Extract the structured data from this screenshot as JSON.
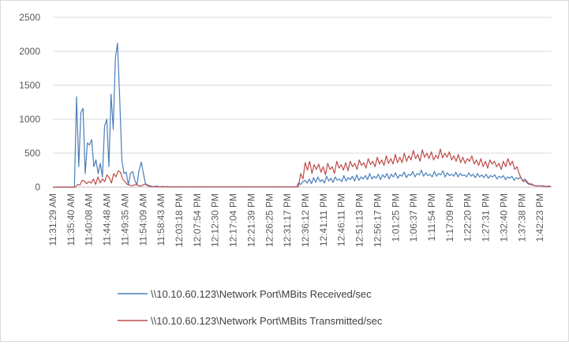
{
  "chart_data": {
    "type": "line",
    "title": "",
    "xlabel": "",
    "ylabel": "",
    "ylim": [
      0,
      2500
    ],
    "y_ticks": [
      0,
      500,
      1000,
      1500,
      2000,
      2500
    ],
    "grid": "horizontal",
    "legend_position": "bottom",
    "x_labels": [
      "11:31:29 AM",
      "11:35:40 AM",
      "11:40:08 AM",
      "11:44:48 AM",
      "11:49:35 AM",
      "11:54:09 AM",
      "11:58:43 AM",
      "12:03:18 PM",
      "12:07:54 PM",
      "12:12:30 PM",
      "12:17:04 PM",
      "12:21:39 PM",
      "12:26:25 PM",
      "12:31:17 PM",
      "12:36:12 PM",
      "12:41:11 PM",
      "12:46:11 PM",
      "12:51:13 PM",
      "12:56:17 PM",
      "1:01:25 PM",
      "1:06:37 PM",
      "1:11:54 PM",
      "1:17:09 PM",
      "1:22:20 PM",
      "1:27:31 PM",
      "1:32:40 PM",
      "1:37:38 PM",
      "1:42:23 PM"
    ],
    "series": [
      {
        "name": "\\\\10.10.60.123\\Network Port\\MBits Received/sec",
        "color": "#4a7ebb",
        "values": [
          0,
          0,
          0,
          0,
          0,
          0,
          0,
          0,
          0,
          0,
          0,
          1330,
          300,
          1100,
          1160,
          200,
          650,
          620,
          700,
          300,
          400,
          200,
          350,
          150,
          900,
          1000,
          300,
          1370,
          850,
          1900,
          2120,
          1300,
          400,
          200,
          220,
          30,
          200,
          230,
          100,
          30,
          250,
          370,
          200,
          50,
          30,
          20,
          10,
          5,
          15,
          8,
          5,
          10,
          5,
          8,
          5,
          3,
          6,
          4,
          5,
          3,
          4,
          5,
          3,
          4,
          4,
          3,
          4,
          5,
          3,
          4,
          5,
          3,
          3,
          4,
          3,
          4,
          5,
          3,
          4,
          3,
          4,
          3,
          4,
          3,
          4,
          3,
          4,
          5,
          3,
          4,
          5,
          4,
          3,
          4,
          5,
          3,
          4,
          3,
          4,
          3,
          4,
          3,
          4,
          3,
          5,
          4,
          3,
          4,
          3,
          5,
          4,
          3,
          4,
          3,
          60,
          40,
          80,
          100,
          60,
          120,
          50,
          140,
          70,
          150,
          80,
          110,
          60,
          160,
          90,
          130,
          70,
          150,
          100,
          120,
          80,
          170,
          90,
          140,
          110,
          160,
          90,
          180,
          100,
          150,
          120,
          170,
          110,
          200,
          120,
          160,
          130,
          190,
          110,
          180,
          140,
          200,
          120,
          190,
          150,
          210,
          130,
          180,
          160,
          220,
          140,
          190,
          170,
          230,
          150,
          200,
          180,
          250,
          160,
          210,
          170,
          190,
          150,
          230,
          160,
          200,
          180,
          240,
          150,
          210,
          170,
          190,
          160,
          220,
          150,
          200,
          170,
          180,
          150,
          210,
          160,
          190,
          140,
          200,
          150,
          180,
          140,
          190,
          130,
          170,
          150,
          180,
          120,
          160,
          140,
          170,
          110,
          150,
          130,
          160,
          100,
          140,
          120,
          150,
          90,
          120,
          60,
          40,
          50,
          30,
          20,
          20,
          15,
          20,
          15,
          10,
          15,
          10
        ],
        "x_start_label_index": 0,
        "x_end_label_index": 27.6
      },
      {
        "name": "\\\\10.10.60.123\\Network Port\\MBits Transmitted/sec",
        "color": "#be4b48",
        "values": [
          0,
          0,
          0,
          0,
          0,
          0,
          0,
          0,
          0,
          0,
          0,
          40,
          30,
          100,
          90,
          50,
          80,
          60,
          120,
          40,
          150,
          60,
          120,
          80,
          180,
          140,
          60,
          200,
          150,
          240,
          220,
          120,
          80,
          40,
          30,
          20,
          30,
          40,
          20,
          15,
          30,
          45,
          20,
          10,
          8,
          6,
          5,
          4,
          5,
          4,
          3,
          5,
          4,
          3,
          4,
          3,
          4,
          3,
          4,
          3,
          4,
          3,
          4,
          3,
          4,
          3,
          4,
          3,
          4,
          3,
          4,
          3,
          4,
          3,
          4,
          3,
          4,
          3,
          4,
          3,
          4,
          3,
          4,
          3,
          4,
          3,
          4,
          3,
          4,
          3,
          4,
          3,
          4,
          3,
          4,
          3,
          4,
          3,
          4,
          3,
          4,
          3,
          4,
          3,
          4,
          3,
          4,
          3,
          4,
          3,
          200,
          120,
          360,
          250,
          380,
          200,
          330,
          260,
          340,
          220,
          300,
          180,
          350,
          260,
          300,
          200,
          380,
          280,
          330,
          250,
          360,
          240,
          380,
          300,
          350,
          260,
          400,
          320,
          360,
          280,
          420,
          330,
          380,
          300,
          440,
          340,
          400,
          320,
          460,
          350,
          420,
          340,
          480,
          360,
          440,
          360,
          500,
          380,
          460,
          400,
          540,
          420,
          480,
          380,
          550,
          440,
          500,
          420,
          520,
          400,
          470,
          420,
          560,
          430,
          500,
          440,
          520,
          400,
          460,
          380,
          480,
          360,
          440,
          350,
          420,
          380,
          460,
          340,
          400,
          320,
          420,
          300,
          380,
          280,
          400,
          340,
          380,
          300,
          350,
          260,
          380,
          300,
          420,
          320,
          380,
          260,
          300,
          200,
          120,
          80,
          100,
          60,
          40,
          30,
          20,
          15,
          20,
          15,
          12,
          10,
          8,
          10
        ],
        "x_start_label_index": 0,
        "x_end_label_index": 27.6
      }
    ]
  }
}
